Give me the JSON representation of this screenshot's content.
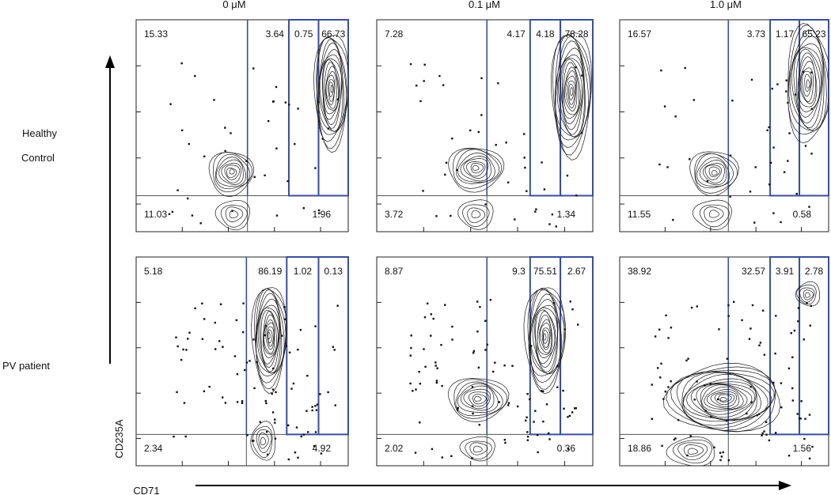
{
  "figure": {
    "column_headers": [
      "0 μM",
      "0.1 μM",
      "1.0 μM"
    ],
    "row_labels": [
      {
        "lines": [
          "Healthy",
          "Control"
        ]
      },
      {
        "lines": [
          "PV patient"
        ]
      }
    ],
    "x_axis_label": "CD71",
    "y_axis_label": "CD235A"
  },
  "chart_data": [
    {
      "type": "scatter",
      "row": "Healthy Control",
      "column": "0 μM",
      "gate_values": {
        "upper_left": "15.33",
        "upper_middle": "3.64",
        "upper_right_1": "0.75",
        "upper_right_2": "66.73",
        "lower_left": "11.03",
        "lower_right": "1.96"
      }
    },
    {
      "type": "scatter",
      "row": "Healthy Control",
      "column": "0.1 μM",
      "gate_values": {
        "upper_left": "7.28",
        "upper_middle": "4.17",
        "upper_right_1": "4.18",
        "upper_right_2": "78.28",
        "lower_left": "3.72",
        "lower_right": "1.34"
      }
    },
    {
      "type": "scatter",
      "row": "Healthy Control",
      "column": "1.0 μM",
      "gate_values": {
        "upper_left": "16.57",
        "upper_middle": "3.73",
        "upper_right_1": "1.17",
        "upper_right_2": "65.23",
        "lower_left": "11.55",
        "lower_right": "0.58"
      }
    },
    {
      "type": "scatter",
      "row": "PV patient",
      "column": "0 μM",
      "gate_values": {
        "upper_left": "5.18",
        "upper_middle": "86.19",
        "upper_right_1": "1.02",
        "upper_right_2": "0.13",
        "lower_left": "2.34",
        "lower_right": "4.92"
      }
    },
    {
      "type": "scatter",
      "row": "PV patient",
      "column": "0.1 μM",
      "gate_values": {
        "upper_left": "8.87",
        "upper_middle": "9.3",
        "upper_right_1": "75.51",
        "upper_right_2": "2.67",
        "lower_left": "2.02",
        "lower_right": "0.36"
      }
    },
    {
      "type": "scatter",
      "row": "PV patient",
      "column": "1.0 μM",
      "gate_values": {
        "upper_left": "38.92",
        "upper_middle": "32.57",
        "upper_right_1": "3.91",
        "upper_right_2": "2.78",
        "lower_left": "18.86",
        "lower_right": "1.56"
      }
    }
  ],
  "colors": {
    "gate_line": "#3a4f9a",
    "contour": "#1a1a1a",
    "axis": "#000000",
    "quadrant_line": "#555555"
  }
}
